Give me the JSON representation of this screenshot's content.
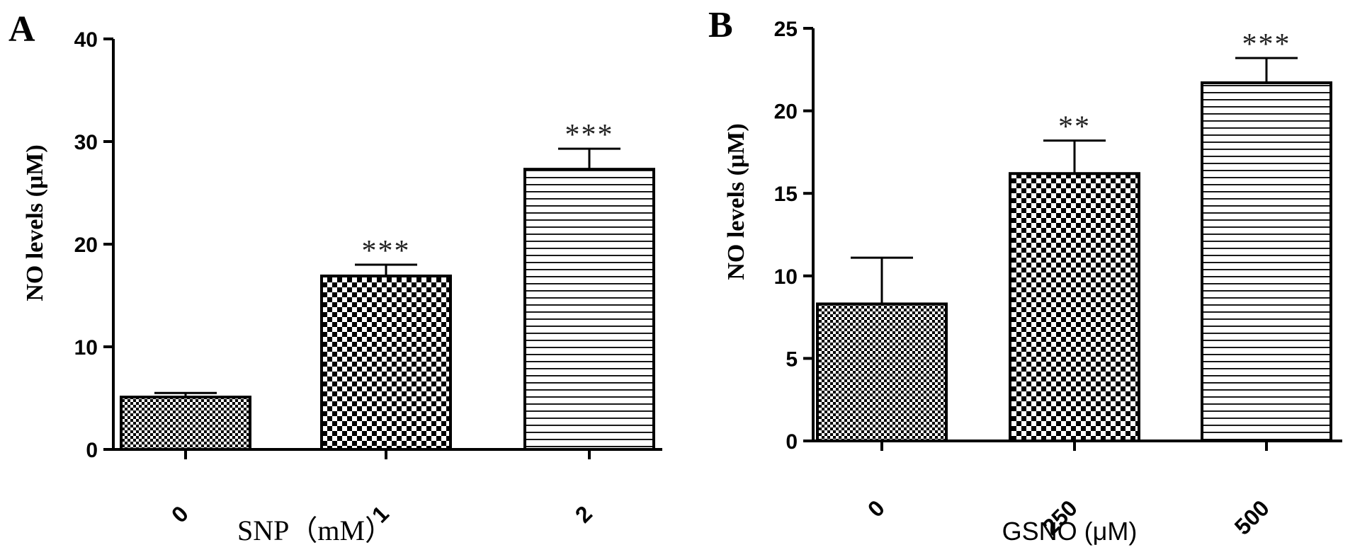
{
  "chart_data": [
    {
      "panel": "A",
      "type": "bar",
      "categories": [
        "0",
        "1",
        "2"
      ],
      "values": [
        5.1,
        16.9,
        27.3
      ],
      "errors": [
        0.4,
        1.1,
        2.0
      ],
      "significance": [
        "",
        "***",
        "***"
      ],
      "patterns": [
        "checker-fine",
        "checker-coarse",
        "hlines"
      ],
      "xlabel": "SNP（mM）",
      "ylabel": "NO levels (μM)",
      "ylim": [
        0,
        40
      ],
      "yticks": [
        0,
        10,
        20,
        30,
        40
      ],
      "yticks_text": [
        "0",
        "10",
        "20",
        "30",
        "40"
      ],
      "grid": false
    },
    {
      "panel": "B",
      "type": "bar",
      "categories": [
        "0",
        "250",
        "500"
      ],
      "values": [
        8.3,
        16.2,
        21.7
      ],
      "errors": [
        2.8,
        2.0,
        1.5
      ],
      "significance": [
        "",
        "**",
        "***"
      ],
      "patterns": [
        "checker-fine",
        "checker-coarse",
        "hlines"
      ],
      "xlabel": "GSNO (μM)",
      "ylabel": "NO levels (μM)",
      "ylim": [
        0,
        25
      ],
      "yticks": [
        0,
        5,
        10,
        15,
        20,
        25
      ],
      "yticks_text": [
        "0",
        "5",
        "10",
        "15",
        "20",
        "25"
      ],
      "grid": false
    }
  ]
}
